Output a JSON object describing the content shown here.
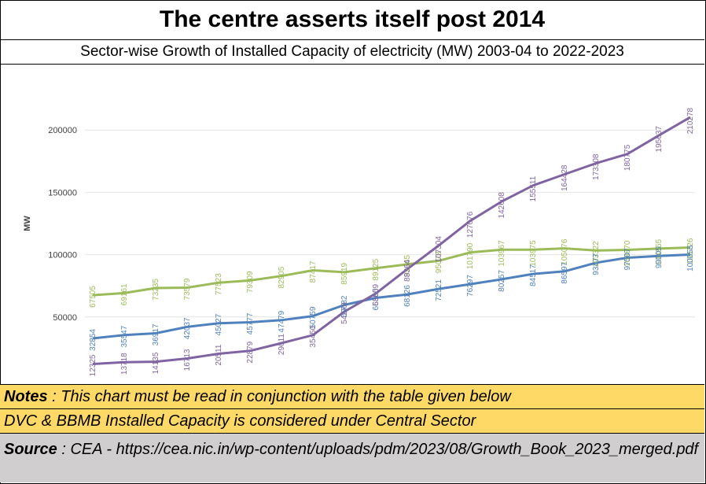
{
  "title": "The centre asserts itself post 2014",
  "subtitle": "Sector-wise Growth of Installed Capacity  of electricity (MW) 2003-04 to 2022-2023",
  "notes": {
    "note1_label": "Notes",
    "note1_text": " : This chart must be read in conjunction with the table given below",
    "note2_text": "DVC & BBMB Installed Capacity is considered under Central Sector"
  },
  "source": {
    "label": "Source",
    "text": " : CEA - https://cea.nic.in/wp-content/uploads/pdm/2023/08/Growth_Book_2023_merged.pdf"
  },
  "chart_data": {
    "type": "line",
    "ylabel": "MW",
    "ylim": [
      0,
      250000
    ],
    "yticks": [
      50000,
      100000,
      150000,
      200000
    ],
    "grid": true,
    "series": [
      {
        "color": "#9bbb59",
        "values": [
          67505,
          69161,
          73235,
          73579,
          77523,
          79309,
          82905,
          87417,
          85919,
          89125,
          92265,
          95078,
          101790,
          103967,
          103975,
          105076,
          103322,
          103870,
          104855,
          105726
        ]
      },
      {
        "color": "#4f81bd",
        "values": [
          32854,
          35547,
          36917,
          42037,
          45027,
          45777,
          47479,
          50759,
          59682,
          65360,
          68126,
          72521,
          76297,
          80257,
          84517,
          86597,
          93477,
          97507,
          99005,
          100055
        ]
      },
      {
        "color": "#8064a2",
        "values": [
          12325,
          13718,
          14135,
          16713,
          20511,
          22879,
          29011,
          35450,
          54276,
          68859,
          88364,
          107304,
          127076,
          142608,
          155511,
          164428,
          173308,
          180775,
          195637,
          210278
        ]
      }
    ]
  }
}
